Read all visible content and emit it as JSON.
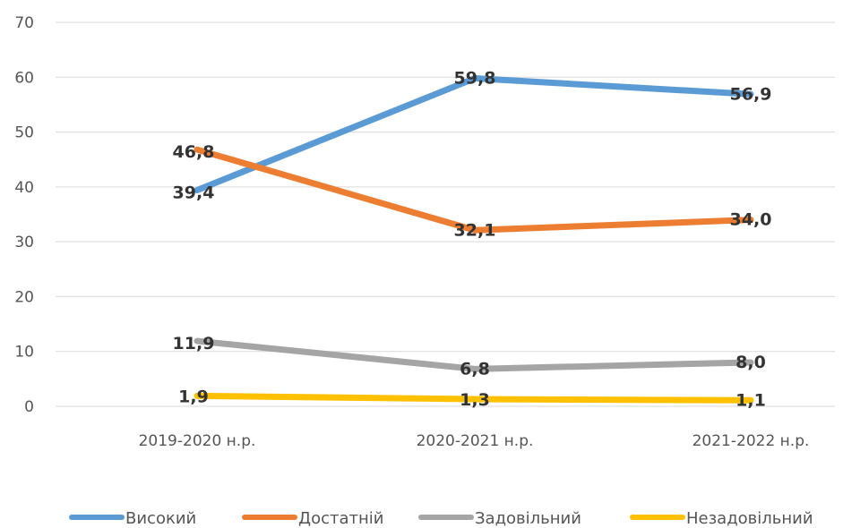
{
  "chart_data": {
    "type": "line",
    "categories": [
      "2019-2020 н.р.",
      "2020-2021 н.р.",
      "2021-2022 н.р."
    ],
    "series": [
      {
        "name": "Високий",
        "color": "#5b9bd5",
        "values": [
          39.4,
          59.8,
          56.9
        ],
        "labels": [
          "39,4",
          "59,8",
          "56,9"
        ]
      },
      {
        "name": "Достатній",
        "color": "#ed7d31",
        "values": [
          46.8,
          32.1,
          34.0
        ],
        "labels": [
          "46,8",
          "32,1",
          "34,0"
        ]
      },
      {
        "name": "Задовільний",
        "color": "#a5a5a5",
        "values": [
          11.9,
          6.8,
          8.0
        ],
        "labels": [
          "11,9",
          "6,8",
          "8,0"
        ]
      },
      {
        "name": "Незадовільний",
        "color": "#ffc000",
        "values": [
          1.9,
          1.3,
          1.1
        ],
        "labels": [
          "1,9",
          "1,3",
          "1,1"
        ]
      }
    ],
    "y_ticks": [
      "0",
      "10",
      "20",
      "30",
      "40",
      "50",
      "60",
      "70"
    ],
    "ylim": [
      0,
      70
    ],
    "grid": true,
    "legend": "bottom"
  }
}
